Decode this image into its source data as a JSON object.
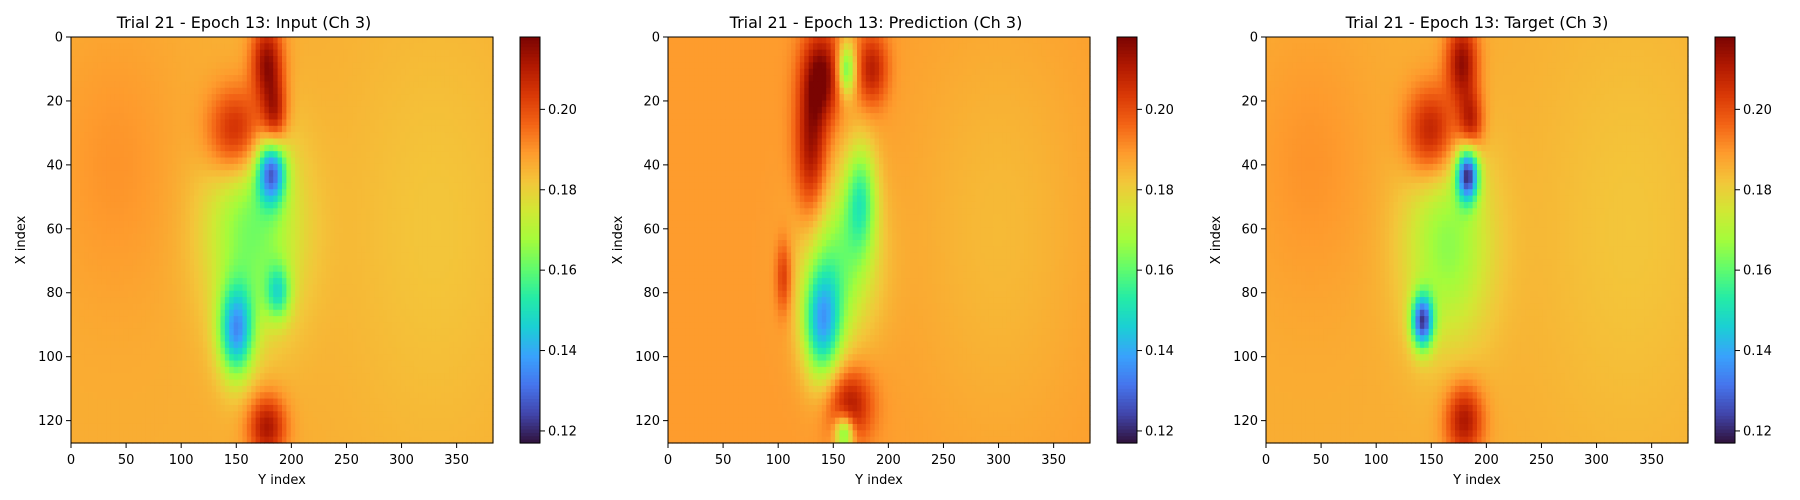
{
  "colors": {
    "colormap": [
      "#30123b",
      "#4145ab",
      "#4675ed",
      "#39a2fc",
      "#1bcfd4",
      "#24eca6",
      "#61fc6c",
      "#a4fc3b",
      "#d1e834",
      "#f3c63a",
      "#fe9b2d",
      "#f36315",
      "#d93806",
      "#b11901",
      "#7a0402"
    ],
    "background": "#ffffff"
  },
  "chart_data": [
    {
      "type": "heatmap",
      "title": "Trial 21 - Epoch 13: Input (Ch 3)",
      "xlabel": "Y index",
      "ylabel": "X index",
      "xlim": [
        0,
        383
      ],
      "ylim": [
        127,
        0
      ],
      "xticks": [
        "0",
        "50",
        "100",
        "150",
        "200",
        "250",
        "300",
        "350"
      ],
      "yticks": [
        "0",
        "20",
        "40",
        "60",
        "80",
        "100",
        "120"
      ],
      "colorbar": {
        "range": [
          0.117,
          0.218
        ],
        "ticks": [
          "0.12",
          "0.14",
          "0.16",
          "0.18",
          "0.20"
        ]
      },
      "background_value": 0.186,
      "features": [
        {
          "x": 178,
          "y": 8,
          "sx": 10,
          "sy": 9,
          "v": 0.215
        },
        {
          "x": 150,
          "y": 30,
          "sx": 18,
          "sy": 10,
          "v": 0.212
        },
        {
          "x": 185,
          "y": 25,
          "sx": 8,
          "sy": 8,
          "v": 0.21
        },
        {
          "x": 182,
          "y": 42,
          "sx": 9,
          "sy": 7,
          "v": 0.138
        },
        {
          "x": 165,
          "y": 60,
          "sx": 30,
          "sy": 22,
          "v": 0.162
        },
        {
          "x": 150,
          "y": 92,
          "sx": 11,
          "sy": 10,
          "v": 0.142
        },
        {
          "x": 188,
          "y": 80,
          "sx": 8,
          "sy": 6,
          "v": 0.16
        },
        {
          "x": 178,
          "y": 122,
          "sx": 12,
          "sy": 7,
          "v": 0.212
        },
        {
          "x": 330,
          "y": 60,
          "sx": 60,
          "sy": 50,
          "v": 0.182
        },
        {
          "x": 40,
          "y": 40,
          "sx": 40,
          "sy": 30,
          "v": 0.19
        }
      ]
    },
    {
      "type": "heatmap",
      "title": "Trial 21 - Epoch 13: Prediction (Ch 3)",
      "xlabel": "Y index",
      "ylabel": "X index",
      "xlim": [
        0,
        383
      ],
      "ylim": [
        127,
        0
      ],
      "xticks": [
        "0",
        "50",
        "100",
        "150",
        "200",
        "250",
        "300",
        "350"
      ],
      "yticks": [
        "0",
        "20",
        "40",
        "60",
        "80",
        "100",
        "120"
      ],
      "colorbar": {
        "range": [
          0.117,
          0.218
        ],
        "ticks": [
          "0.12",
          "0.14",
          "0.16",
          "0.18",
          "0.20"
        ]
      },
      "background_value": 0.189,
      "features": [
        {
          "x": 140,
          "y": 12,
          "sx": 12,
          "sy": 10,
          "v": 0.216
        },
        {
          "x": 130,
          "y": 35,
          "sx": 10,
          "sy": 16,
          "v": 0.214
        },
        {
          "x": 185,
          "y": 10,
          "sx": 10,
          "sy": 8,
          "v": 0.21
        },
        {
          "x": 162,
          "y": 10,
          "sx": 6,
          "sy": 6,
          "v": 0.158
        },
        {
          "x": 175,
          "y": 50,
          "sx": 10,
          "sy": 12,
          "v": 0.162
        },
        {
          "x": 155,
          "y": 70,
          "sx": 24,
          "sy": 18,
          "v": 0.165
        },
        {
          "x": 140,
          "y": 90,
          "sx": 12,
          "sy": 12,
          "v": 0.148
        },
        {
          "x": 105,
          "y": 75,
          "sx": 5,
          "sy": 8,
          "v": 0.205
        },
        {
          "x": 165,
          "y": 115,
          "sx": 14,
          "sy": 8,
          "v": 0.212
        },
        {
          "x": 160,
          "y": 124,
          "sx": 6,
          "sy": 4,
          "v": 0.155
        },
        {
          "x": 300,
          "y": 60,
          "sx": 60,
          "sy": 50,
          "v": 0.184
        }
      ]
    },
    {
      "type": "heatmap",
      "title": "Trial 21 - Epoch 13: Target (Ch 3)",
      "xlabel": "Y index",
      "ylabel": "X index",
      "xlim": [
        0,
        383
      ],
      "ylim": [
        127,
        0
      ],
      "xticks": [
        "0",
        "50",
        "100",
        "150",
        "200",
        "250",
        "300",
        "350"
      ],
      "yticks": [
        "0",
        "20",
        "40",
        "60",
        "80",
        "100",
        "120"
      ],
      "colorbar": {
        "range": [
          0.117,
          0.218
        ],
        "ticks": [
          "0.12",
          "0.14",
          "0.16",
          "0.18",
          "0.20"
        ]
      },
      "background_value": 0.186,
      "features": [
        {
          "x": 178,
          "y": 8,
          "sx": 10,
          "sy": 9,
          "v": 0.215
        },
        {
          "x": 150,
          "y": 30,
          "sx": 16,
          "sy": 10,
          "v": 0.212
        },
        {
          "x": 186,
          "y": 27,
          "sx": 8,
          "sy": 7,
          "v": 0.21
        },
        {
          "x": 183,
          "y": 43,
          "sx": 7,
          "sy": 6,
          "v": 0.128
        },
        {
          "x": 165,
          "y": 65,
          "sx": 28,
          "sy": 22,
          "v": 0.165
        },
        {
          "x": 142,
          "y": 89,
          "sx": 7,
          "sy": 6,
          "v": 0.13
        },
        {
          "x": 180,
          "y": 120,
          "sx": 12,
          "sy": 8,
          "v": 0.212
        },
        {
          "x": 330,
          "y": 60,
          "sx": 60,
          "sy": 50,
          "v": 0.182
        },
        {
          "x": 40,
          "y": 40,
          "sx": 40,
          "sy": 30,
          "v": 0.19
        }
      ]
    }
  ]
}
